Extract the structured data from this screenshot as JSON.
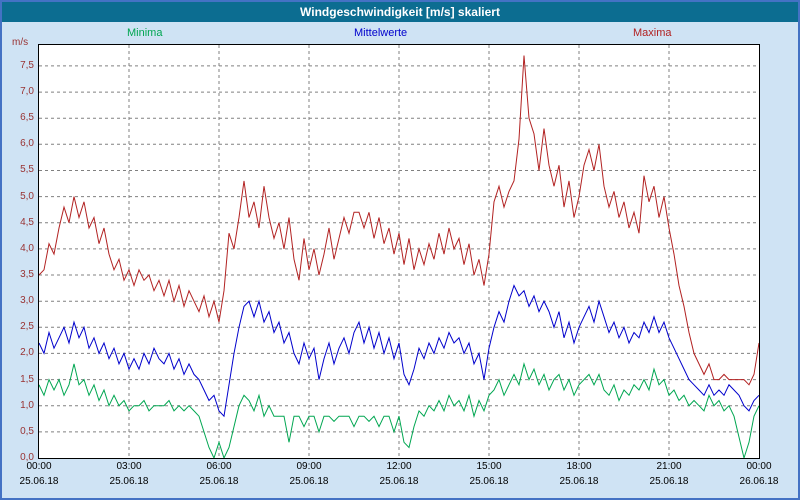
{
  "window": {
    "title": "Windgeschwindigkeit [m/s] skaliert"
  },
  "colors": {
    "titlebar_bg": "#0c6d91",
    "titlebar_text": "#ffffff",
    "window_bg": "#cfe3f4",
    "window_border": "#4472c4",
    "plot_bg": "#ffffff",
    "plot_border": "#000000",
    "grid": "#808080",
    "y_axis_label": "#993333",
    "x_axis_label": "#000000"
  },
  "chart_data": {
    "type": "line",
    "title": "Windgeschwindigkeit [m/s] skaliert",
    "ylabel": "m/s",
    "xlabel": "",
    "ylim": [
      0,
      7.9
    ],
    "ytick_step": 0.5,
    "ytick_labels": [
      "0,0",
      "0,5",
      "1,0",
      "1,5",
      "2,0",
      "2,5",
      "3,0",
      "3,5",
      "4,0",
      "4,5",
      "5,0",
      "5,5",
      "6,0",
      "6,5",
      "7,0",
      "7,5"
    ],
    "grid": "dashed",
    "legend_position": "top",
    "x_range_hours": [
      0,
      24
    ],
    "sample_interval_minutes": 10,
    "xticks": [
      {
        "hour": 0,
        "time": "00:00",
        "date": "25.06.18"
      },
      {
        "hour": 3,
        "time": "03:00",
        "date": "25.06.18"
      },
      {
        "hour": 6,
        "time": "06:00",
        "date": "25.06.18"
      },
      {
        "hour": 9,
        "time": "09:00",
        "date": "25.06.18"
      },
      {
        "hour": 12,
        "time": "12:00",
        "date": "25.06.18"
      },
      {
        "hour": 15,
        "time": "15:00",
        "date": "25.06.18"
      },
      {
        "hour": 18,
        "time": "18:00",
        "date": "25.06.18"
      },
      {
        "hour": 21,
        "time": "21:00",
        "date": "25.06.18"
      },
      {
        "hour": 24,
        "time": "00:00",
        "date": "26.06.18"
      }
    ],
    "series": [
      {
        "name": "Minima",
        "color": "#00a651",
        "values": [
          1.4,
          1.2,
          1.5,
          1.3,
          1.5,
          1.2,
          1.4,
          1.8,
          1.4,
          1.5,
          1.2,
          1.4,
          1.1,
          1.3,
          1.0,
          1.2,
          1.0,
          1.1,
          0.9,
          1.0,
          1.0,
          1.1,
          0.9,
          1.0,
          1.0,
          1.0,
          1.1,
          0.9,
          1.0,
          0.9,
          1.0,
          0.9,
          0.8,
          0.5,
          0.2,
          0.0,
          0.3,
          0.0,
          0.2,
          0.6,
          1.0,
          1.2,
          1.1,
          0.9,
          1.2,
          0.8,
          1.0,
          0.8,
          0.8,
          0.8,
          0.3,
          0.8,
          0.8,
          0.6,
          0.8,
          0.8,
          0.5,
          0.8,
          0.8,
          0.7,
          0.8,
          0.8,
          0.8,
          0.6,
          0.8,
          0.8,
          0.7,
          0.8,
          0.6,
          0.8,
          0.8,
          0.5,
          0.8,
          0.3,
          0.2,
          0.6,
          0.9,
          0.8,
          1.0,
          0.9,
          1.1,
          0.9,
          1.2,
          1.0,
          1.1,
          0.9,
          1.2,
          0.8,
          1.1,
          0.9,
          1.2,
          1.3,
          1.5,
          1.2,
          1.4,
          1.6,
          1.4,
          1.8,
          1.5,
          1.7,
          1.4,
          1.6,
          1.3,
          1.5,
          1.6,
          1.3,
          1.5,
          1.2,
          1.4,
          1.5,
          1.6,
          1.4,
          1.6,
          1.3,
          1.2,
          1.4,
          1.1,
          1.3,
          1.2,
          1.4,
          1.3,
          1.5,
          1.3,
          1.7,
          1.4,
          1.5,
          1.2,
          1.3,
          1.1,
          1.2,
          1.0,
          1.1,
          1.0,
          0.9,
          1.2,
          1.0,
          1.1,
          0.9,
          1.0,
          0.8,
          0.4,
          0.0,
          0.3,
          0.8,
          1.0
        ]
      },
      {
        "name": "Mittelwerte",
        "color": "#0000cc",
        "values": [
          2.2,
          2.0,
          2.4,
          2.1,
          2.3,
          2.5,
          2.2,
          2.6,
          2.3,
          2.5,
          2.1,
          2.3,
          2.0,
          2.2,
          1.9,
          2.1,
          1.8,
          2.0,
          1.7,
          1.9,
          1.7,
          2.0,
          1.8,
          2.1,
          1.9,
          1.8,
          2.0,
          1.7,
          1.9,
          1.6,
          1.8,
          1.6,
          1.5,
          1.3,
          1.1,
          1.2,
          0.9,
          0.8,
          1.4,
          2.0,
          2.5,
          2.9,
          3.0,
          2.7,
          3.0,
          2.6,
          2.8,
          2.4,
          2.6,
          2.2,
          2.4,
          2.0,
          1.8,
          2.2,
          1.9,
          2.1,
          1.5,
          1.9,
          2.2,
          1.8,
          2.1,
          2.3,
          2.0,
          2.4,
          2.6,
          2.2,
          2.5,
          2.1,
          2.4,
          2.0,
          2.3,
          1.9,
          2.2,
          1.6,
          1.4,
          1.7,
          2.1,
          1.9,
          2.2,
          2.0,
          2.3,
          2.1,
          2.4,
          2.2,
          2.3,
          2.0,
          2.2,
          1.8,
          2.0,
          1.5,
          2.1,
          2.5,
          2.8,
          2.6,
          3.0,
          3.3,
          3.1,
          3.2,
          2.9,
          3.1,
          2.8,
          3.0,
          2.8,
          2.5,
          2.8,
          2.3,
          2.6,
          2.2,
          2.5,
          2.7,
          2.9,
          2.6,
          3.0,
          2.7,
          2.4,
          2.6,
          2.3,
          2.5,
          2.2,
          2.4,
          2.3,
          2.6,
          2.4,
          2.7,
          2.4,
          2.6,
          2.3,
          2.1,
          1.9,
          1.7,
          1.5,
          1.4,
          1.3,
          1.2,
          1.4,
          1.2,
          1.3,
          1.2,
          1.4,
          1.3,
          1.2,
          1.0,
          0.9,
          1.1,
          1.2
        ]
      },
      {
        "name": "Maxima",
        "color": "#b22222",
        "values": [
          3.5,
          3.6,
          4.1,
          3.9,
          4.4,
          4.8,
          4.5,
          5.0,
          4.6,
          4.9,
          4.4,
          4.6,
          4.1,
          4.4,
          3.9,
          3.6,
          3.8,
          3.4,
          3.6,
          3.3,
          3.6,
          3.4,
          3.5,
          3.2,
          3.4,
          3.1,
          3.4,
          3.0,
          3.3,
          2.9,
          3.2,
          3.0,
          2.8,
          3.1,
          2.7,
          3.0,
          2.6,
          3.2,
          4.3,
          4.0,
          4.6,
          5.3,
          4.6,
          4.9,
          4.4,
          5.2,
          4.6,
          4.2,
          4.5,
          4.0,
          4.6,
          3.8,
          3.4,
          4.2,
          3.6,
          4.0,
          3.5,
          3.9,
          4.4,
          3.8,
          4.2,
          4.6,
          4.3,
          4.7,
          4.7,
          4.4,
          4.7,
          4.2,
          4.6,
          4.1,
          4.4,
          3.9,
          4.3,
          3.7,
          4.2,
          3.6,
          4.0,
          3.7,
          4.1,
          3.8,
          4.3,
          3.9,
          4.4,
          4.0,
          4.2,
          3.7,
          4.1,
          3.5,
          3.8,
          3.3,
          3.9,
          4.9,
          5.2,
          4.8,
          5.1,
          5.3,
          6.1,
          7.7,
          6.5,
          6.2,
          5.5,
          6.3,
          5.6,
          5.2,
          5.6,
          4.8,
          5.3,
          4.6,
          5.0,
          5.6,
          5.9,
          5.5,
          6.0,
          5.2,
          4.8,
          5.1,
          4.6,
          4.9,
          4.4,
          4.7,
          4.3,
          5.4,
          4.9,
          5.2,
          4.6,
          5.0,
          4.4,
          3.9,
          3.3,
          2.9,
          2.4,
          2.0,
          1.8,
          1.6,
          1.8,
          1.5,
          1.5,
          1.6,
          1.5,
          1.5,
          1.5,
          1.5,
          1.4,
          1.6,
          2.2
        ]
      }
    ]
  }
}
